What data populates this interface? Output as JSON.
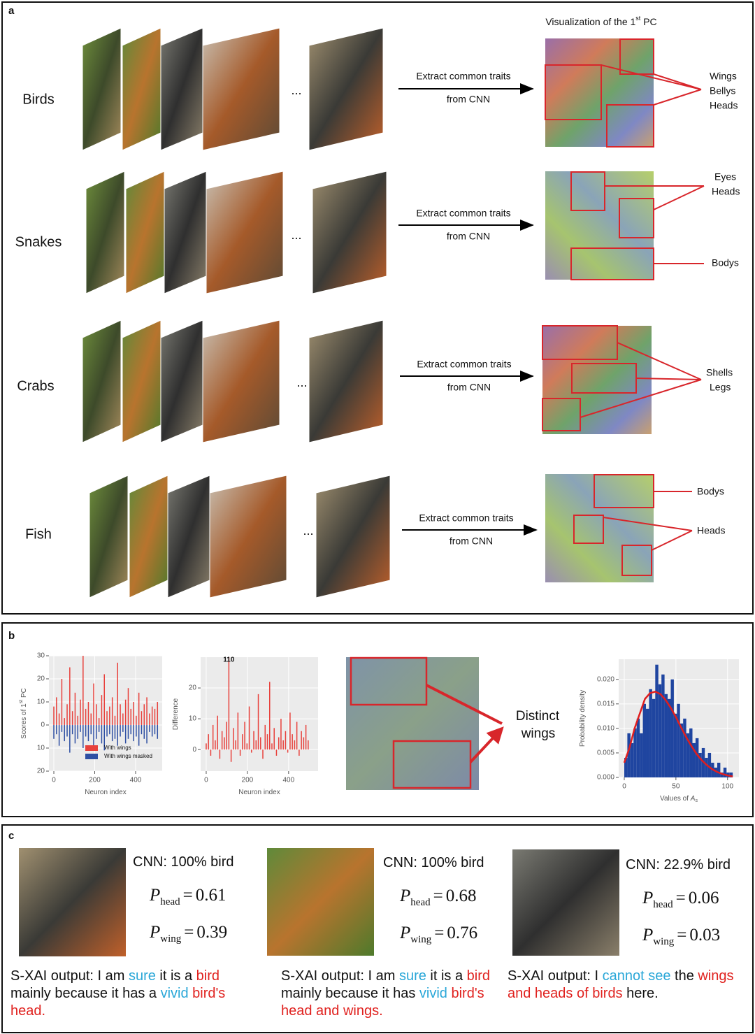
{
  "panel_a": {
    "label": "a",
    "pc_title": {
      "text": "Visualization of the 1",
      "sup": "st",
      "tail": " PC"
    },
    "rows": [
      {
        "name": "Birds",
        "arrow_top": "Extract common traits",
        "arrow_bottom": "from CNN",
        "ellipsis": "...",
        "traits": [
          "Wings",
          "Bellys",
          "Heads"
        ]
      },
      {
        "name": "Snakes",
        "arrow_top": "Extract common traits",
        "arrow_bottom": "from CNN",
        "ellipsis": "...",
        "traits": [
          "Eyes",
          "Heads",
          "Bodys"
        ]
      },
      {
        "name": "Crabs",
        "arrow_top": "Extract common traits",
        "arrow_bottom": "from CNN",
        "ellipsis": "...",
        "traits": [
          "Shells",
          "Legs"
        ]
      },
      {
        "name": "Fish",
        "arrow_top": "Extract common traits",
        "arrow_bottom": "from CNN",
        "ellipsis": "...",
        "traits": [
          "Bodys",
          "Heads"
        ]
      }
    ]
  },
  "panel_b": {
    "label": "b",
    "image_text": [
      "Distinct",
      "wings"
    ],
    "charts": [
      {
        "type": "bar",
        "ylabel": "Scores of 1",
        "ylabel_sup": "st",
        "ylabel_tail": " PC",
        "xlabel": "Neuron index",
        "xlim": [
          -24,
          530
        ],
        "xticks": [
          0,
          200,
          400
        ],
        "ylim": [
          -20,
          30
        ],
        "yticks": [
          {
            "value": -20,
            "label": "20"
          },
          {
            "value": -10,
            "label": "10"
          },
          0,
          10,
          20,
          30
        ],
        "grid": true,
        "legend": "bottom",
        "x": [
          0,
          13,
          26,
          39,
          52,
          65,
          78,
          91,
          104,
          117,
          130,
          143,
          156,
          169,
          182,
          195,
          208,
          221,
          234,
          247,
          260,
          273,
          286,
          299,
          312,
          325,
          338,
          351,
          364,
          377,
          390,
          403,
          416,
          429,
          442,
          455,
          468,
          481,
          494,
          507
        ],
        "series": [
          {
            "name": "With wings",
            "color": "#e8413c",
            "values": [
              8,
              12,
              5,
              20,
              3,
              9,
              25,
              6,
              14,
              4,
              11,
              30,
              7,
              10,
              5,
              18,
              9,
              3,
              13,
              22,
              6,
              8,
              12,
              4,
              27,
              9,
              5,
              11,
              16,
              7,
              10,
              4,
              14,
              6,
              9,
              12,
              5,
              8,
              7,
              10
            ]
          },
          {
            "name": "With wings masked",
            "color": "#2e4fa3",
            "values": [
              -6,
              -4,
              -9,
              -3,
              -7,
              -5,
              -12,
              -4,
              -8,
              -6,
              -3,
              -10,
              -5,
              -7,
              -4,
              -9,
              -6,
              -3,
              -8,
              -11,
              -5,
              -4,
              -7,
              -6,
              -9,
              -5,
              -3,
              -8,
              -6,
              -4,
              -7,
              -5,
              -9,
              -4,
              -6,
              -8,
              -3,
              -5,
              -4,
              -6
            ]
          }
        ]
      },
      {
        "type": "bar",
        "ylabel": "Difference",
        "xlabel": "Neuron index",
        "xlim": [
          -27,
          543
        ],
        "xticks": [
          0,
          200,
          400
        ],
        "ylim": [
          -7,
          30
        ],
        "yticks": [
          0,
          10,
          20
        ],
        "grid": true,
        "annotation": {
          "x": 110,
          "y": 30
        },
        "x": [
          0,
          11,
          22,
          33,
          44,
          55,
          66,
          77,
          88,
          99,
          110,
          121,
          132,
          143,
          154,
          165,
          176,
          187,
          198,
          209,
          220,
          231,
          242,
          253,
          264,
          275,
          286,
          297,
          308,
          319,
          330,
          341,
          352,
          363,
          374,
          385,
          396,
          407,
          418,
          429,
          440,
          451,
          462,
          473,
          484,
          495
        ],
        "series": [
          {
            "color": "#e8413c",
            "values": [
              2,
              5,
              -2,
              8,
              3,
              11,
              -3,
              6,
              4,
              9,
              30,
              -4,
              7,
              3,
              12,
              -2,
              5,
              9,
              2,
              14,
              -1,
              6,
              3,
              18,
              4,
              -3,
              8,
              5,
              22,
              2,
              7,
              -2,
              4,
              10,
              3,
              6,
              -1,
              12,
              5,
              3,
              9,
              -2,
              6,
              4,
              8,
              3
            ]
          }
        ]
      },
      {
        "type": "histogram",
        "ylabel": "Probability density",
        "xlabel": "Values of ",
        "xlabel_var": "A",
        "xlabel_sub": "s",
        "xlim": [
          -5.4,
          111
        ],
        "xticks": [
          0,
          50,
          100
        ],
        "ylim": [
          0,
          0.0241
        ],
        "yticks": [
          {
            "value": 0,
            "label": "0.000"
          },
          0.005,
          {
            "value": 0.01,
            "label": "0.010"
          },
          0.015,
          {
            "value": 0.02,
            "label": "0.020"
          }
        ],
        "grid": true,
        "color": "#1f45a0",
        "bins": [
          0,
          3,
          6,
          9,
          12,
          15,
          18,
          21,
          24,
          27,
          30,
          33,
          36,
          39,
          42,
          45,
          48,
          51,
          54,
          57,
          60,
          63,
          66,
          69,
          72,
          75,
          78,
          81,
          84,
          87,
          90,
          93,
          96,
          99,
          102,
          105
        ],
        "values": [
          0.004,
          0.009,
          0.007,
          0.01,
          0.012,
          0.009,
          0.015,
          0.014,
          0.018,
          0.016,
          0.023,
          0.019,
          0.021,
          0.017,
          0.016,
          0.02,
          0.013,
          0.015,
          0.011,
          0.012,
          0.009,
          0.01,
          0.007,
          0.008,
          0.005,
          0.006,
          0.004,
          0.005,
          0.003,
          0.002,
          0.003,
          0.001,
          0.002,
          0.001,
          0.001
        ],
        "fit": {
          "color": "#e01e1e",
          "x": [
            0,
            5,
            10,
            15,
            20,
            25,
            30,
            35,
            40,
            45,
            50,
            55,
            60,
            65,
            70,
            75,
            80,
            85,
            90,
            95,
            100,
            105
          ],
          "values": [
            0.003,
            0.006,
            0.01,
            0.013,
            0.016,
            0.0172,
            0.0175,
            0.017,
            0.0158,
            0.0142,
            0.0123,
            0.0102,
            0.0082,
            0.0064,
            0.0048,
            0.0035,
            0.0025,
            0.0017,
            0.0011,
            0.0007,
            0.0004,
            0.0002
          ]
        }
      }
    ]
  },
  "panel_c": {
    "label": "c",
    "symbol": "P",
    "sub_head": "head",
    "sub_wing": "wing",
    "equals": "=",
    "items": [
      {
        "cnn": "CNN: 100% bird",
        "p_head": 0.61,
        "p_wing": 0.39,
        "output": [
          {
            "text": "S-XAI output: I am ",
            "color": "#111111"
          },
          {
            "text": "sure",
            "color": "#2aa7d8"
          },
          {
            "text": " it is a ",
            "color": "#111111"
          },
          {
            "text": "bird",
            "color": "#e0221f"
          },
          {
            "text": " mainly because it has a ",
            "color": "#111111"
          },
          {
            "text": "vivid",
            "color": "#2aa7d8"
          },
          {
            "text": " ",
            "color": "#111111"
          },
          {
            "text": "bird's head.",
            "color": "#e0221f"
          }
        ]
      },
      {
        "cnn": "CNN: 100% bird",
        "p_head": 0.68,
        "p_wing": 0.76,
        "output": [
          {
            "text": "S-XAI output: I am ",
            "color": "#111111"
          },
          {
            "text": "sure",
            "color": "#2aa7d8"
          },
          {
            "text": " it is a ",
            "color": "#111111"
          },
          {
            "text": "bird",
            "color": "#e0221f"
          },
          {
            "text": " mainly because it has ",
            "color": "#111111"
          },
          {
            "text": "vivid",
            "color": "#2aa7d8"
          },
          {
            "text": " ",
            "color": "#111111"
          },
          {
            "text": "bird's head and wings.",
            "color": "#e0221f"
          }
        ]
      },
      {
        "cnn": "CNN: 22.9% bird",
        "p_head": 0.06,
        "p_wing": 0.03,
        "output": [
          {
            "text": "S-XAI output: I ",
            "color": "#111111"
          },
          {
            "text": "cannot see",
            "color": "#2aa7d8"
          },
          {
            "text": " the ",
            "color": "#111111"
          },
          {
            "text": "wings and heads of birds",
            "color": "#e0221f"
          },
          {
            "text": " here.",
            "color": "#111111"
          }
        ]
      }
    ]
  }
}
